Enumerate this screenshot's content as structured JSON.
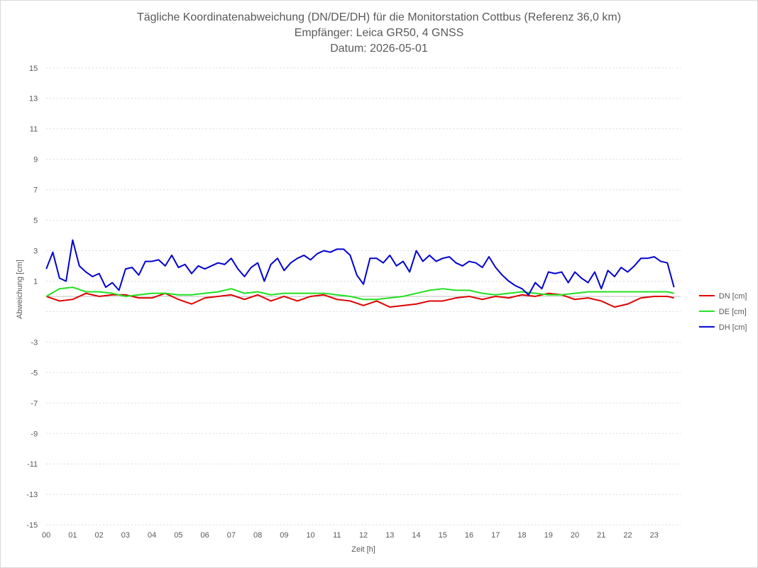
{
  "chart_data": {
    "type": "line",
    "title_lines": [
      "Tägliche Koordinatenabweichung (DN/DE/DH) für die Monitorstation Cottbus (Referenz 36,0 km)",
      "Empfänger: Leica GR50, 4 GNSS",
      "Datum: 2026-05-01"
    ],
    "xlabel": "Zeit [h]",
    "ylabel": "Abweichung [cm]",
    "xlim": [
      0,
      24
    ],
    "ylim": [
      -15,
      15
    ],
    "x_ticks": [
      "00",
      "01",
      "02",
      "03",
      "04",
      "05",
      "06",
      "07",
      "08",
      "09",
      "10",
      "11",
      "12",
      "13",
      "14",
      "15",
      "16",
      "17",
      "18",
      "19",
      "20",
      "21",
      "22",
      "23"
    ],
    "y_ticks": [
      15,
      13,
      11,
      9,
      7,
      5,
      3,
      1,
      -1,
      -3,
      -5,
      -7,
      -9,
      -11,
      -13,
      -15
    ],
    "y_tick_labels": [
      "15",
      "13",
      "11",
      "9",
      "7",
      "5",
      "3",
      "1",
      "",
      "-3",
      "-5",
      "-7",
      "-9",
      "-11",
      "-13",
      "-15"
    ],
    "grid": "horizontal dotted",
    "legend_position": "right",
    "series": [
      {
        "name": "DN [cm]",
        "color": "#e00000",
        "x": [
          0.0,
          0.5,
          1.0,
          1.5,
          2.0,
          2.5,
          3.0,
          3.5,
          4.0,
          4.5,
          5.0,
          5.5,
          6.0,
          6.5,
          7.0,
          7.5,
          8.0,
          8.5,
          9.0,
          9.5,
          10.0,
          10.5,
          11.0,
          11.5,
          12.0,
          12.5,
          13.0,
          13.5,
          14.0,
          14.5,
          15.0,
          15.5,
          16.0,
          16.5,
          17.0,
          17.5,
          18.0,
          18.5,
          19.0,
          19.5,
          20.0,
          20.5,
          21.0,
          21.5,
          22.0,
          22.5,
          23.0,
          23.5,
          23.75
        ],
        "values": [
          0.0,
          -0.3,
          -0.2,
          0.2,
          0.0,
          0.1,
          0.1,
          -0.1,
          -0.1,
          0.2,
          -0.2,
          -0.5,
          -0.1,
          0.0,
          0.1,
          -0.2,
          0.1,
          -0.3,
          0.0,
          -0.3,
          0.0,
          0.1,
          -0.2,
          -0.3,
          -0.6,
          -0.3,
          -0.7,
          -0.6,
          -0.5,
          -0.3,
          -0.3,
          -0.1,
          0.0,
          -0.2,
          0.0,
          -0.1,
          0.1,
          0.0,
          0.2,
          0.1,
          -0.2,
          -0.1,
          -0.3,
          -0.7,
          -0.5,
          -0.1,
          0.0,
          0.0,
          -0.1
        ]
      },
      {
        "name": "DE [cm]",
        "color": "#20e020",
        "x": [
          0.0,
          0.5,
          1.0,
          1.5,
          2.0,
          2.5,
          3.0,
          3.5,
          4.0,
          4.5,
          5.0,
          5.5,
          6.0,
          6.5,
          7.0,
          7.5,
          8.0,
          8.5,
          9.0,
          9.5,
          10.0,
          10.5,
          11.0,
          11.5,
          12.0,
          12.5,
          13.0,
          13.5,
          14.0,
          14.5,
          15.0,
          15.5,
          16.0,
          16.5,
          17.0,
          17.5,
          18.0,
          18.5,
          19.0,
          19.5,
          20.0,
          20.5,
          21.0,
          21.5,
          22.0,
          22.5,
          23.0,
          23.5,
          23.75
        ],
        "values": [
          0.0,
          0.5,
          0.6,
          0.3,
          0.3,
          0.2,
          0.0,
          0.1,
          0.2,
          0.2,
          0.1,
          0.1,
          0.2,
          0.3,
          0.5,
          0.2,
          0.3,
          0.1,
          0.2,
          0.2,
          0.2,
          0.2,
          0.1,
          0.0,
          -0.2,
          -0.2,
          -0.1,
          0.0,
          0.2,
          0.4,
          0.5,
          0.4,
          0.4,
          0.2,
          0.1,
          0.2,
          0.3,
          0.2,
          0.1,
          0.1,
          0.2,
          0.3,
          0.3,
          0.3,
          0.3,
          0.3,
          0.3,
          0.3,
          0.2
        ]
      },
      {
        "name": "DH [cm]",
        "color": "#0000d0",
        "x": [
          0.0,
          0.25,
          0.5,
          0.75,
          1.0,
          1.25,
          1.5,
          1.75,
          2.0,
          2.25,
          2.5,
          2.75,
          3.0,
          3.25,
          3.5,
          3.75,
          4.0,
          4.25,
          4.5,
          4.75,
          5.0,
          5.25,
          5.5,
          5.75,
          6.0,
          6.25,
          6.5,
          6.75,
          7.0,
          7.25,
          7.5,
          7.75,
          8.0,
          8.25,
          8.5,
          8.75,
          9.0,
          9.25,
          9.5,
          9.75,
          10.0,
          10.25,
          10.5,
          10.75,
          11.0,
          11.25,
          11.5,
          11.75,
          12.0,
          12.25,
          12.5,
          12.75,
          13.0,
          13.25,
          13.5,
          13.75,
          14.0,
          14.25,
          14.5,
          14.75,
          15.0,
          15.25,
          15.5,
          15.75,
          16.0,
          16.25,
          16.5,
          16.75,
          17.0,
          17.25,
          17.5,
          17.75,
          18.0,
          18.25,
          18.5,
          18.75,
          19.0,
          19.25,
          19.5,
          19.75,
          20.0,
          20.25,
          20.5,
          20.75,
          21.0,
          21.25,
          21.5,
          21.75,
          22.0,
          22.25,
          22.5,
          22.75,
          23.0,
          23.25,
          23.5,
          23.75
        ],
        "values": [
          1.8,
          2.9,
          1.2,
          1.0,
          3.7,
          2.0,
          1.6,
          1.3,
          1.5,
          0.6,
          0.9,
          0.4,
          1.8,
          1.9,
          1.4,
          2.3,
          2.3,
          2.4,
          2.0,
          2.7,
          1.9,
          2.1,
          1.5,
          2.0,
          1.8,
          2.0,
          2.2,
          2.1,
          2.5,
          1.8,
          1.3,
          1.9,
          2.2,
          1.0,
          2.1,
          2.5,
          1.7,
          2.2,
          2.5,
          2.7,
          2.4,
          2.8,
          3.0,
          2.9,
          3.1,
          3.1,
          2.7,
          1.4,
          0.8,
          2.5,
          2.5,
          2.2,
          2.7,
          2.0,
          2.3,
          1.6,
          3.0,
          2.3,
          2.7,
          2.3,
          2.5,
          2.6,
          2.2,
          2.0,
          2.3,
          2.2,
          1.9,
          2.6,
          1.9,
          1.4,
          1.0,
          0.7,
          0.5,
          0.1,
          0.9,
          0.5,
          1.6,
          1.5,
          1.6,
          0.9,
          1.6,
          1.2,
          0.9,
          1.6,
          0.5,
          1.7,
          1.3,
          1.9,
          1.6,
          2.0,
          2.5,
          2.5,
          2.6,
          2.3,
          2.2,
          0.6
        ]
      }
    ]
  }
}
